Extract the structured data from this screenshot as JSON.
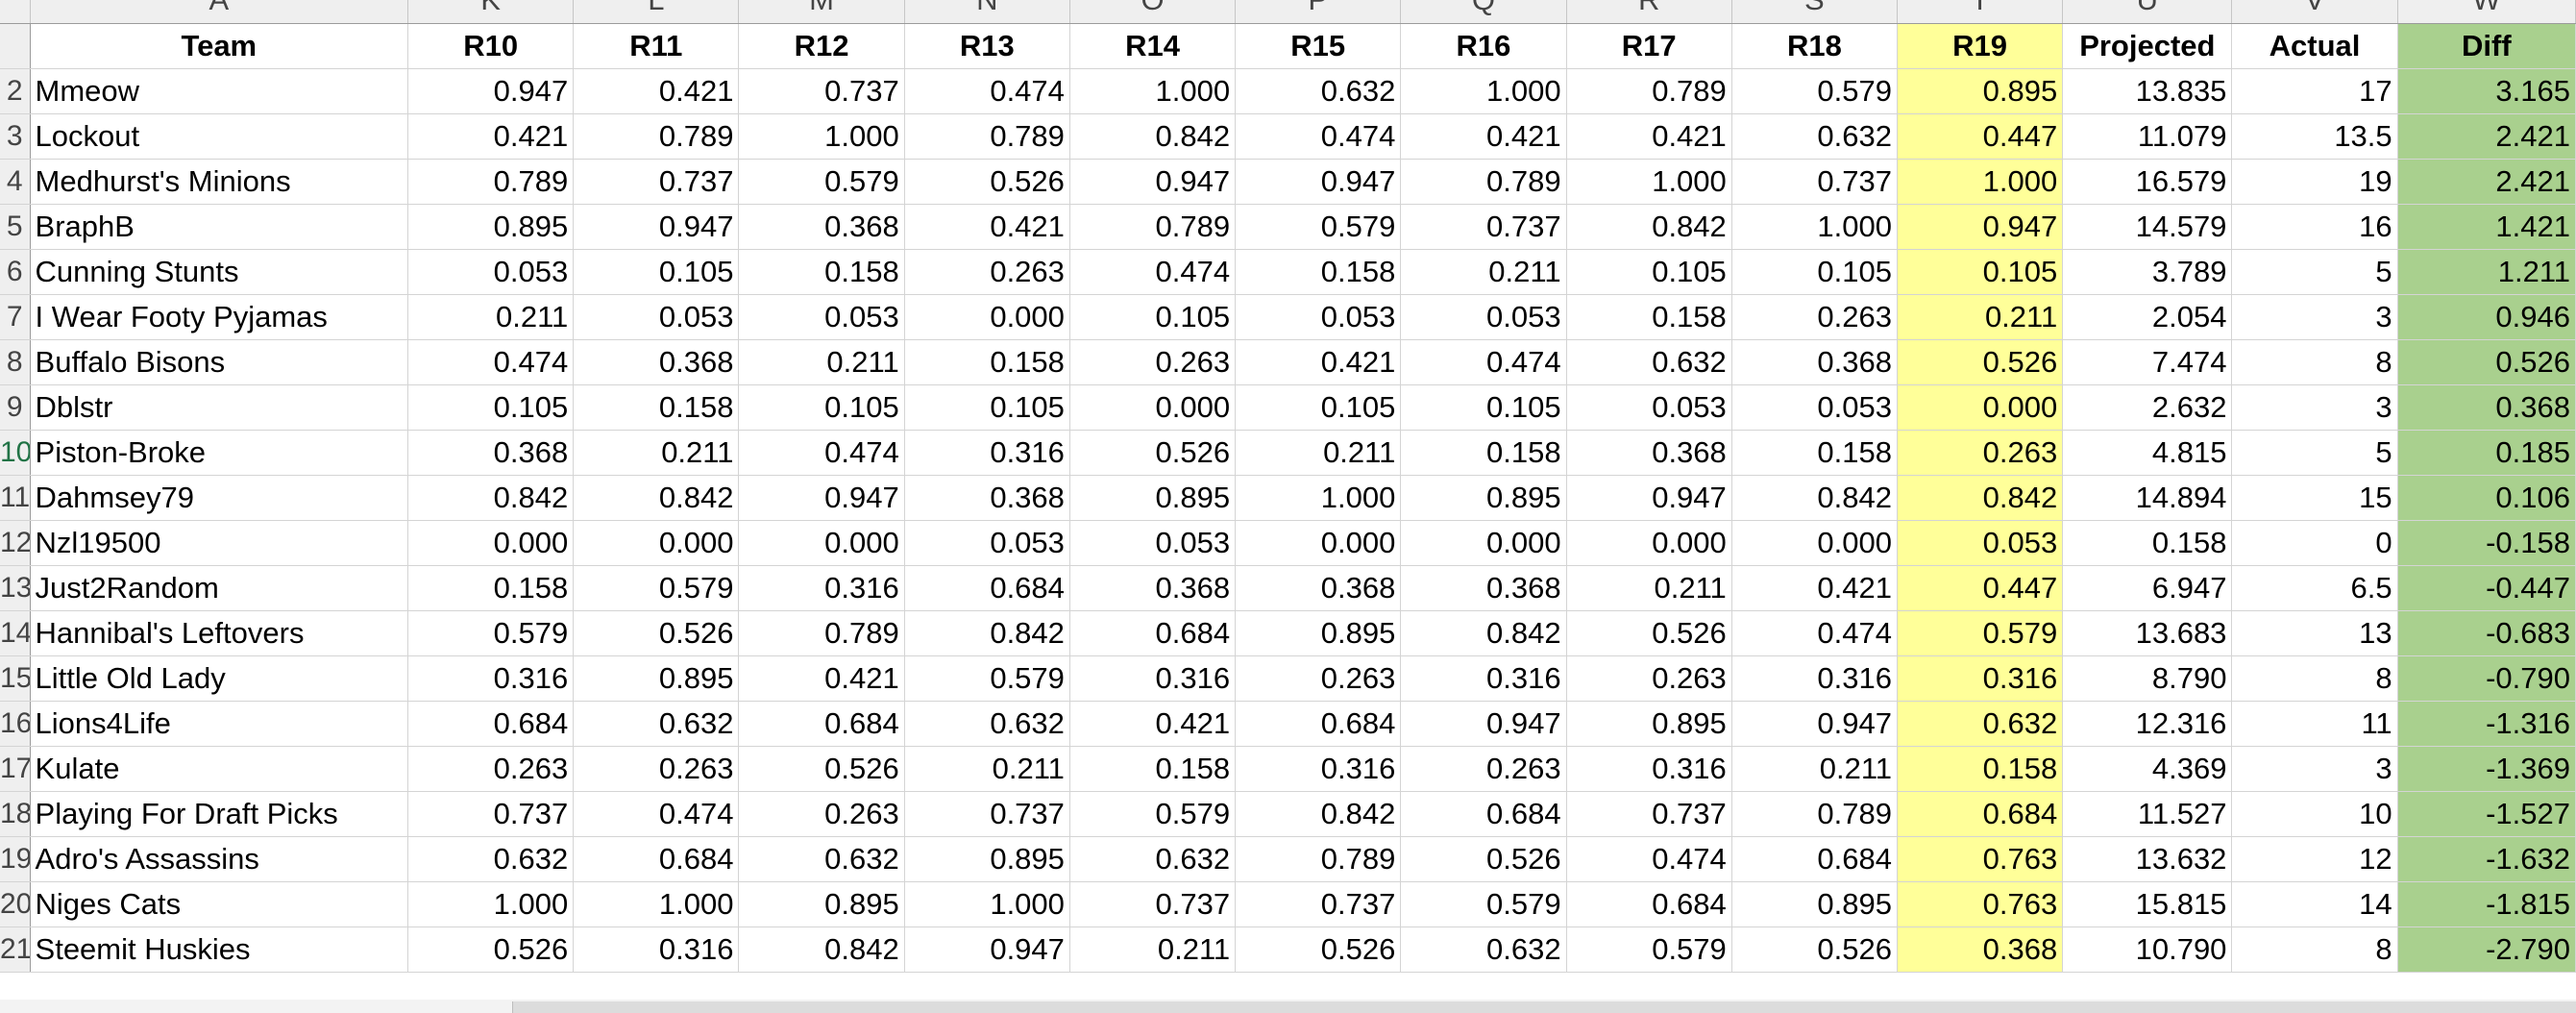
{
  "column_letters": [
    "A",
    "K",
    "L",
    "M",
    "N",
    "O",
    "P",
    "Q",
    "R",
    "S",
    "T",
    "U",
    "V",
    "W"
  ],
  "headers": [
    "Team",
    "R10",
    "R11",
    "R12",
    "R13",
    "R14",
    "R15",
    "R16",
    "R17",
    "R18",
    "R19",
    "Projected",
    "Actual",
    "Diff"
  ],
  "rows": [
    {
      "num": "2",
      "cells": [
        "Mmeow",
        "0.947",
        "0.421",
        "0.737",
        "0.474",
        "1.000",
        "0.632",
        "1.000",
        "0.789",
        "0.579",
        "0.895",
        "13.835",
        "17",
        "3.165"
      ]
    },
    {
      "num": "3",
      "cells": [
        "Lockout",
        "0.421",
        "0.789",
        "1.000",
        "0.789",
        "0.842",
        "0.474",
        "0.421",
        "0.421",
        "0.632",
        "0.447",
        "11.079",
        "13.5",
        "2.421"
      ]
    },
    {
      "num": "4",
      "cells": [
        "Medhurst's Minions",
        "0.789",
        "0.737",
        "0.579",
        "0.526",
        "0.947",
        "0.947",
        "0.789",
        "1.000",
        "0.737",
        "1.000",
        "16.579",
        "19",
        "2.421"
      ]
    },
    {
      "num": "5",
      "cells": [
        "BraphB",
        "0.895",
        "0.947",
        "0.368",
        "0.421",
        "0.789",
        "0.579",
        "0.737",
        "0.842",
        "1.000",
        "0.947",
        "14.579",
        "16",
        "1.421"
      ]
    },
    {
      "num": "6",
      "cells": [
        "Cunning Stunts",
        "0.053",
        "0.105",
        "0.158",
        "0.263",
        "0.474",
        "0.158",
        "0.211",
        "0.105",
        "0.105",
        "0.105",
        "3.789",
        "5",
        "1.211"
      ]
    },
    {
      "num": "7",
      "cells": [
        "I Wear Footy Pyjamas",
        "0.211",
        "0.053",
        "0.053",
        "0.000",
        "0.105",
        "0.053",
        "0.053",
        "0.158",
        "0.263",
        "0.211",
        "2.054",
        "3",
        "0.946"
      ]
    },
    {
      "num": "8",
      "cells": [
        "Buffalo Bisons",
        "0.474",
        "0.368",
        "0.211",
        "0.158",
        "0.263",
        "0.421",
        "0.474",
        "0.632",
        "0.368",
        "0.526",
        "7.474",
        "8",
        "0.526"
      ]
    },
    {
      "num": "9",
      "cells": [
        "Dblstr",
        "0.105",
        "0.158",
        "0.105",
        "0.105",
        "0.000",
        "0.105",
        "0.105",
        "0.053",
        "0.053",
        "0.000",
        "2.632",
        "3",
        "0.368"
      ]
    },
    {
      "num": "10",
      "cells": [
        "Piston-Broke",
        "0.368",
        "0.211",
        "0.474",
        "0.316",
        "0.526",
        "0.211",
        "0.158",
        "0.368",
        "0.158",
        "0.263",
        "4.815",
        "5",
        "0.185"
      ]
    },
    {
      "num": "11",
      "cells": [
        "Dahmsey79",
        "0.842",
        "0.842",
        "0.947",
        "0.368",
        "0.895",
        "1.000",
        "0.895",
        "0.947",
        "0.842",
        "0.842",
        "14.894",
        "15",
        "0.106"
      ]
    },
    {
      "num": "12",
      "cells": [
        "Nzl19500",
        "0.000",
        "0.000",
        "0.000",
        "0.053",
        "0.053",
        "0.000",
        "0.000",
        "0.000",
        "0.000",
        "0.053",
        "0.158",
        "0",
        "-0.158"
      ]
    },
    {
      "num": "13",
      "cells": [
        "Just2Random",
        "0.158",
        "0.579",
        "0.316",
        "0.684",
        "0.368",
        "0.368",
        "0.368",
        "0.211",
        "0.421",
        "0.447",
        "6.947",
        "6.5",
        "-0.447"
      ]
    },
    {
      "num": "14",
      "cells": [
        "Hannibal's Leftovers",
        "0.579",
        "0.526",
        "0.789",
        "0.842",
        "0.684",
        "0.895",
        "0.842",
        "0.526",
        "0.474",
        "0.579",
        "13.683",
        "13",
        "-0.683"
      ]
    },
    {
      "num": "15",
      "cells": [
        "Little Old Lady",
        "0.316",
        "0.895",
        "0.421",
        "0.579",
        "0.316",
        "0.263",
        "0.316",
        "0.263",
        "0.316",
        "0.316",
        "8.790",
        "8",
        "-0.790"
      ]
    },
    {
      "num": "16",
      "cells": [
        "Lions4Life",
        "0.684",
        "0.632",
        "0.684",
        "0.632",
        "0.421",
        "0.684",
        "0.947",
        "0.895",
        "0.947",
        "0.632",
        "12.316",
        "11",
        "-1.316"
      ]
    },
    {
      "num": "17",
      "cells": [
        "Kulate",
        "0.263",
        "0.263",
        "0.526",
        "0.211",
        "0.158",
        "0.316",
        "0.263",
        "0.316",
        "0.211",
        "0.158",
        "4.369",
        "3",
        "-1.369"
      ]
    },
    {
      "num": "18",
      "cells": [
        "Playing For Draft Picks",
        "0.737",
        "0.474",
        "0.263",
        "0.737",
        "0.579",
        "0.842",
        "0.684",
        "0.737",
        "0.789",
        "0.684",
        "11.527",
        "10",
        "-1.527"
      ]
    },
    {
      "num": "19",
      "cells": [
        "Adro's Assassins",
        "0.632",
        "0.684",
        "0.632",
        "0.895",
        "0.632",
        "0.789",
        "0.526",
        "0.474",
        "0.684",
        "0.763",
        "13.632",
        "12",
        "-1.632"
      ]
    },
    {
      "num": "20",
      "cells": [
        "Niges Cats",
        "1.000",
        "1.000",
        "0.895",
        "1.000",
        "0.737",
        "0.737",
        "0.579",
        "0.684",
        "0.895",
        "0.763",
        "15.815",
        "14",
        "-1.815"
      ]
    },
    {
      "num": "21",
      "cells": [
        "Steemit Huskies",
        "0.526",
        "0.316",
        "0.842",
        "0.947",
        "0.211",
        "0.526",
        "0.632",
        "0.579",
        "0.526",
        "0.368",
        "10.790",
        "8",
        "-2.790"
      ]
    }
  ],
  "colors": {
    "r19_fill": "#ffff99",
    "diff_fill": "#a9d08e",
    "gridline": "#d4d4d4",
    "header_bg": "#efefef"
  }
}
